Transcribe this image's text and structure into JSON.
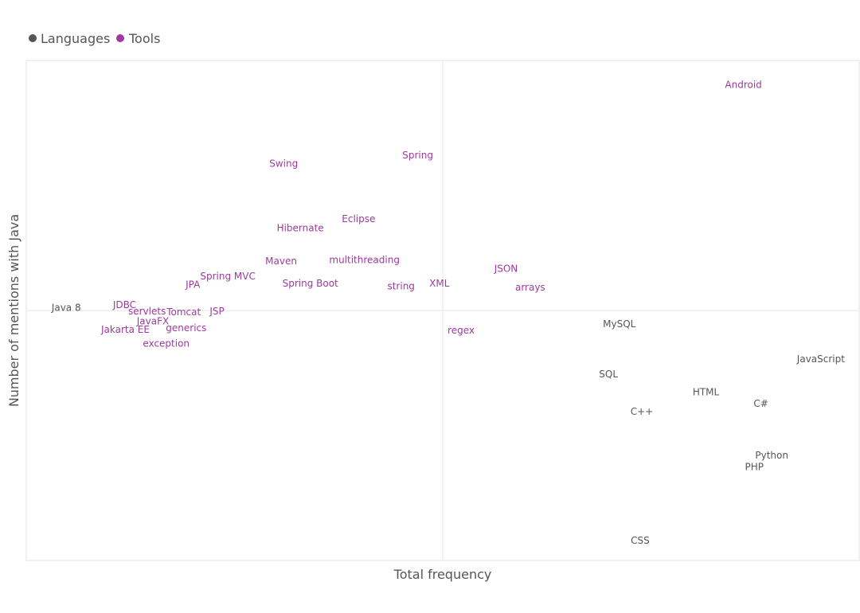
{
  "colors": {
    "languages": "#555555",
    "tools": "#9e3a9e",
    "frame": "#e3e3e3",
    "divider": "#e6e6e6",
    "axis_text": "#555555"
  },
  "legend": [
    {
      "label": "Languages",
      "color": "#555555"
    },
    {
      "label": "Tools",
      "color": "#9e3a9e"
    }
  ],
  "chart_data": {
    "type": "scatter",
    "title": "",
    "xlabel": "Total frequency",
    "ylabel": "Number of mentions with Java",
    "xlim": [
      0,
      100
    ],
    "ylim": [
      0,
      100
    ],
    "grid": false,
    "quadrant_lines": {
      "x": 50,
      "y": 50
    },
    "legend_position": "top-left",
    "series": [
      {
        "name": "Languages",
        "color": "#555555",
        "points": [
          {
            "label": "Java 8",
            "x": 4.8,
            "y": 50.5
          },
          {
            "label": "MySQL",
            "x": 71.2,
            "y": 47.2
          },
          {
            "label": "SQL",
            "x": 69.9,
            "y": 37.2
          },
          {
            "label": "JavaScript",
            "x": 95.4,
            "y": 40.2
          },
          {
            "label": "HTML",
            "x": 81.6,
            "y": 33.6
          },
          {
            "label": "C#",
            "x": 88.2,
            "y": 31.3
          },
          {
            "label": "C++",
            "x": 73.9,
            "y": 29.7
          },
          {
            "label": "Python",
            "x": 89.5,
            "y": 20.9
          },
          {
            "label": "PHP",
            "x": 87.4,
            "y": 18.6
          },
          {
            "label": "CSS",
            "x": 73.7,
            "y": 3.9
          }
        ]
      },
      {
        "name": "Tools",
        "color": "#9e3a9e",
        "points": [
          {
            "label": "Android",
            "x": 86.1,
            "y": 95.1
          },
          {
            "label": "Spring",
            "x": 47.0,
            "y": 81.0
          },
          {
            "label": "Swing",
            "x": 30.9,
            "y": 79.3
          },
          {
            "label": "Eclipse",
            "x": 39.9,
            "y": 68.2
          },
          {
            "label": "Hibernate",
            "x": 32.9,
            "y": 66.4
          },
          {
            "label": "Maven",
            "x": 30.6,
            "y": 59.8
          },
          {
            "label": "multithreading",
            "x": 40.6,
            "y": 60.0
          },
          {
            "label": "JSON",
            "x": 57.6,
            "y": 58.3
          },
          {
            "label": "Spring MVC",
            "x": 24.2,
            "y": 56.8
          },
          {
            "label": "JPA",
            "x": 20.0,
            "y": 55.1
          },
          {
            "label": "Spring Boot",
            "x": 34.1,
            "y": 55.3
          },
          {
            "label": "string",
            "x": 45.0,
            "y": 54.8
          },
          {
            "label": "XML",
            "x": 49.6,
            "y": 55.3
          },
          {
            "label": "arrays",
            "x": 60.5,
            "y": 54.5
          },
          {
            "label": "JDBC",
            "x": 11.8,
            "y": 51.0
          },
          {
            "label": "servlets",
            "x": 14.5,
            "y": 49.8
          },
          {
            "label": "Tomcat",
            "x": 18.9,
            "y": 49.6
          },
          {
            "label": "JSP",
            "x": 22.9,
            "y": 49.8
          },
          {
            "label": "JavaFX",
            "x": 15.2,
            "y": 47.8
          },
          {
            "label": "Jakarta EE",
            "x": 11.9,
            "y": 46.1
          },
          {
            "label": "generics",
            "x": 19.2,
            "y": 46.4
          },
          {
            "label": "regex",
            "x": 52.2,
            "y": 45.9
          },
          {
            "label": "exception",
            "x": 16.8,
            "y": 43.3
          }
        ]
      }
    ]
  }
}
